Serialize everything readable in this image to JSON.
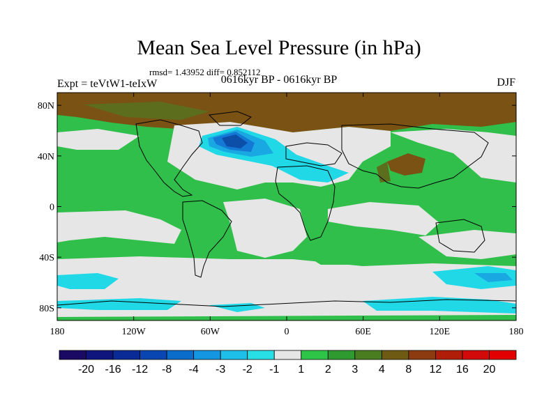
{
  "title": "Mean Sea Level Pressure (in hPa)",
  "stats": "rmsd= 1.43952 diff= 0.852112",
  "left_label": "Expt = teVtW1-teIxW",
  "center_label": "0616kyr BP - 0616kyr BP",
  "season": "DJF",
  "x_ticks": [
    "180",
    "120W",
    "60W",
    "0",
    "60E",
    "120E",
    "180"
  ],
  "y_ticks": [
    "80N",
    "40N",
    "0",
    "40S",
    "80S"
  ],
  "colorbar": {
    "labels": [
      "-20",
      "-16",
      "-12",
      "-8",
      "-4",
      "-3",
      "-2",
      "-1",
      "1",
      "2",
      "3",
      "4",
      "8",
      "12",
      "16",
      "20"
    ],
    "colors": [
      "#1a0a63",
      "#10157e",
      "#0a2a96",
      "#0a46b2",
      "#0a6ccb",
      "#1496e0",
      "#1ec0ea",
      "#28dfe6",
      "#e6e6e6",
      "#2ec447",
      "#2f9a2f",
      "#4a7d1f",
      "#6e5a12",
      "#8c3a0f",
      "#b01e0a",
      "#d20a0a",
      "#e30000"
    ]
  },
  "colors": {
    "green": "#2fbf4a",
    "dark_green": "#3d8f32",
    "olive": "#5c6e1e",
    "brown": "#7a5214",
    "grey": "#e6e6e6",
    "cyan": "#20d8e6",
    "light_blue": "#1aa8e2",
    "mid_blue": "#1479d4",
    "deep_blue": "#0c4ea8"
  }
}
